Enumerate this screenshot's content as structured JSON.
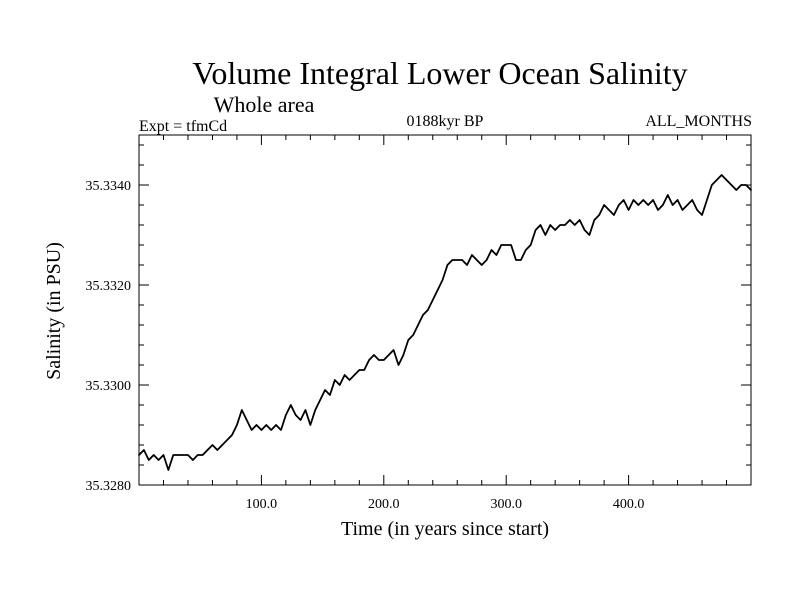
{
  "chart_data": {
    "type": "line",
    "title": "Volume Integral Lower Ocean Salinity",
    "subtitle": "Whole area",
    "left_label": "Expt = tfmCd",
    "center_label": "0188kyr BP",
    "right_label": "ALL_MONTHS",
    "xlabel": "Time (in years since start)",
    "ylabel": "Salinity (in PSU)",
    "xlim": [
      0,
      500
    ],
    "ylim": [
      35.328,
      35.335
    ],
    "xticks": [
      100,
      200,
      300,
      400
    ],
    "xtick_labels": [
      "100.0",
      "200.0",
      "300.0",
      "400.0"
    ],
    "yticks": [
      35.328,
      35.33,
      35.332,
      35.334
    ],
    "ytick_labels": [
      "35.3280",
      "35.3300",
      "35.3320",
      "35.3340"
    ],
    "series": [
      {
        "name": "Volume Integral Lower Ocean Salinity",
        "x": [
          0,
          4,
          8,
          12,
          16,
          20,
          24,
          28,
          32,
          36,
          40,
          44,
          48,
          52,
          56,
          60,
          64,
          68,
          72,
          76,
          80,
          84,
          88,
          92,
          96,
          100,
          104,
          108,
          112,
          116,
          120,
          124,
          128,
          132,
          136,
          140,
          144,
          148,
          152,
          156,
          160,
          164,
          168,
          172,
          176,
          180,
          184,
          188,
          192,
          196,
          200,
          204,
          208,
          212,
          216,
          220,
          224,
          228,
          232,
          236,
          240,
          244,
          248,
          252,
          256,
          260,
          264,
          268,
          272,
          276,
          280,
          284,
          288,
          292,
          296,
          300,
          304,
          308,
          312,
          316,
          320,
          324,
          328,
          332,
          336,
          340,
          344,
          348,
          352,
          356,
          360,
          364,
          368,
          372,
          376,
          380,
          384,
          388,
          392,
          396,
          400,
          404,
          408,
          412,
          416,
          420,
          424,
          428,
          432,
          436,
          440,
          444,
          448,
          452,
          456,
          460,
          464,
          468,
          472,
          476,
          480,
          484,
          488,
          492,
          496,
          500
        ],
        "values": [
          35.3286,
          35.3287,
          35.3285,
          35.3286,
          35.3285,
          35.3286,
          35.3283,
          35.3286,
          35.3286,
          35.3286,
          35.3286,
          35.3285,
          35.3286,
          35.3286,
          35.3287,
          35.3288,
          35.3287,
          35.3288,
          35.3289,
          35.329,
          35.3292,
          35.3295,
          35.3293,
          35.3291,
          35.3292,
          35.3291,
          35.3292,
          35.3291,
          35.3292,
          35.3291,
          35.3294,
          35.3296,
          35.3294,
          35.3293,
          35.3295,
          35.3292,
          35.3295,
          35.3297,
          35.3299,
          35.3298,
          35.3301,
          35.33,
          35.3302,
          35.3301,
          35.3302,
          35.3303,
          35.3303,
          35.3305,
          35.3306,
          35.3305,
          35.3305,
          35.3306,
          35.3307,
          35.3304,
          35.3306,
          35.3309,
          35.331,
          35.3312,
          35.3314,
          35.3315,
          35.3317,
          35.3319,
          35.3321,
          35.3324,
          35.3325,
          35.3325,
          35.3325,
          35.3324,
          35.3326,
          35.3325,
          35.3324,
          35.3325,
          35.3327,
          35.3326,
          35.3328,
          35.3328,
          35.3328,
          35.3325,
          35.3325,
          35.3327,
          35.3328,
          35.3331,
          35.3332,
          35.333,
          35.3332,
          35.3331,
          35.3332,
          35.3332,
          35.3333,
          35.3332,
          35.3333,
          35.3331,
          35.333,
          35.3333,
          35.3334,
          35.3336,
          35.3335,
          35.3334,
          35.3336,
          35.3337,
          35.3335,
          35.3337,
          35.3336,
          35.3337,
          35.3336,
          35.3337,
          35.3335,
          35.3336,
          35.3338,
          35.3336,
          35.3337,
          35.3335,
          35.3336,
          35.3337,
          35.3335,
          35.3334,
          35.3337,
          35.334,
          35.3341,
          35.3342,
          35.3341,
          35.334,
          35.3339,
          35.334,
          35.334,
          35.3339
        ]
      }
    ],
    "grid": false,
    "legend": "none"
  }
}
